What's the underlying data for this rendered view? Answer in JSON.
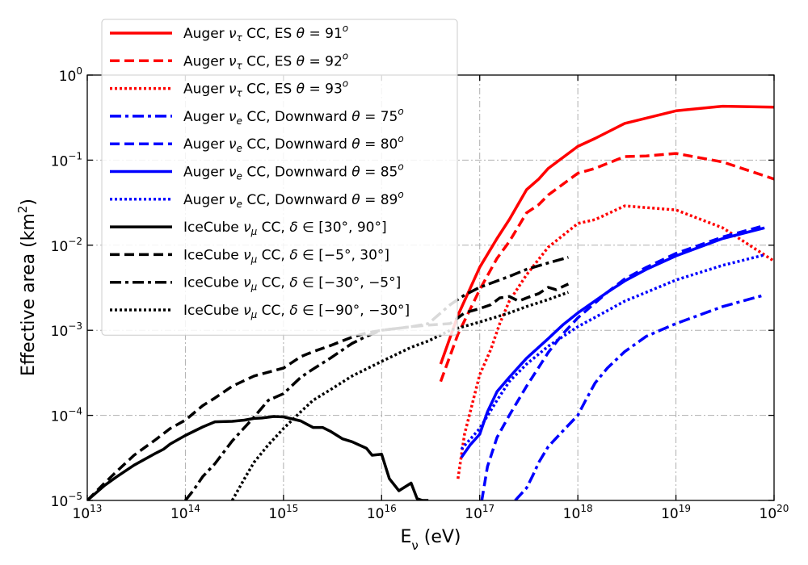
{
  "chart_data": {
    "type": "line",
    "xlabel": "E_ν (eV)",
    "ylabel": "Effective area (km²)",
    "xscale": "log",
    "yscale": "log",
    "xlim": [
      10000000000000.0,
      1e+20
    ],
    "ylim": [
      1e-05,
      1
    ],
    "grid": true,
    "legend_location": "upper-left",
    "x_ticks": [
      {
        "base": "10",
        "exp": "13",
        "value": 10000000000000.0
      },
      {
        "base": "10",
        "exp": "14",
        "value": 100000000000000.0
      },
      {
        "base": "10",
        "exp": "15",
        "value": 1000000000000000.0
      },
      {
        "base": "10",
        "exp": "16",
        "value": 1e+16
      },
      {
        "base": "10",
        "exp": "17",
        "value": 1e+17
      },
      {
        "base": "10",
        "exp": "18",
        "value": 1e+18
      },
      {
        "base": "10",
        "exp": "19",
        "value": 1e+19
      },
      {
        "base": "10",
        "exp": "20",
        "value": 1e+20
      }
    ],
    "y_ticks": [
      {
        "base": "10",
        "exp": "0",
        "value": 1
      },
      {
        "base": "10",
        "exp": "−1",
        "value": 0.1
      },
      {
        "base": "10",
        "exp": "−2",
        "value": 0.01
      },
      {
        "base": "10",
        "exp": "−3",
        "value": 0.001
      },
      {
        "base": "10",
        "exp": "−4",
        "value": 0.0001
      },
      {
        "base": "10",
        "exp": "−5",
        "value": 1e-05
      }
    ],
    "series": [
      {
        "name": "Auger ντ CC, ES θ = 91°",
        "color": "#ff0000",
        "style": "solid",
        "x": [
          4e+16,
          6e+16,
          1e+17,
          1.5e+17,
          2e+17,
          3e+17,
          4e+17,
          5e+17,
          1e+18,
          1.5e+18,
          3e+18,
          1e+19,
          3e+19,
          1e+20
        ],
        "y": [
          0.0004,
          0.0015,
          0.0055,
          0.012,
          0.02,
          0.045,
          0.06,
          0.08,
          0.145,
          0.18,
          0.27,
          0.38,
          0.43,
          0.42
        ]
      },
      {
        "name": "Auger ντ CC, ES θ = 92°",
        "color": "#ff0000",
        "style": "dashed",
        "x": [
          4e+16,
          6e+16,
          1e+17,
          1.5e+17,
          2e+17,
          3e+17,
          4e+17,
          5e+17,
          1e+18,
          1.5e+18,
          3e+18,
          5e+18,
          1e+19,
          3e+19,
          1e+20
        ],
        "y": [
          0.00025,
          0.0009,
          0.003,
          0.007,
          0.011,
          0.024,
          0.03,
          0.039,
          0.07,
          0.08,
          0.11,
          0.112,
          0.12,
          0.095,
          0.06
        ]
      },
      {
        "name": "Auger ντ CC, ES θ = 93°",
        "color": "#ff0000",
        "style": "dotted",
        "x": [
          6e+16,
          7e+16,
          1e+17,
          1.3e+17,
          1.6e+17,
          2e+17,
          3e+17,
          5e+17,
          1e+18,
          1.5e+18,
          3e+18,
          1e+19,
          3e+19,
          1e+20
        ],
        "y": [
          1.8e-05,
          6e-05,
          0.0003,
          0.0006,
          0.0012,
          0.0022,
          0.0045,
          0.0095,
          0.018,
          0.02,
          0.029,
          0.026,
          0.016,
          0.0065
        ]
      },
      {
        "name": "Auger νe CC, Downward θ = 75°",
        "color": "#0000ff",
        "style": "dashdot",
        "x": [
          2.3e+17,
          3e+17,
          3.5e+17,
          4e+17,
          5e+17,
          7e+17,
          1e+18,
          1.2e+18,
          1.5e+18,
          2e+18,
          3e+18,
          5e+18,
          1e+19,
          3e+19,
          8e+19
        ],
        "y": [
          1e-05,
          1.4e-05,
          2e-05,
          2.8e-05,
          4.3e-05,
          6.5e-05,
          0.0001,
          0.00015,
          0.00024,
          0.00036,
          0.00056,
          0.00085,
          0.0012,
          0.0019,
          0.0026
        ]
      },
      {
        "name": "Auger νe CC, Downward θ = 80°",
        "color": "#0000ff",
        "style": "dashed",
        "x": [
          1.05e+17,
          1.2e+17,
          1.5e+17,
          2e+17,
          3e+17,
          5e+17,
          7e+17,
          1e+18,
          2e+18,
          3e+18,
          5e+18,
          1e+19,
          3e+19,
          8e+19
        ],
        "y": [
          1e-05,
          2.5e-05,
          5.5e-05,
          0.0001,
          0.00022,
          0.00055,
          0.0009,
          0.0014,
          0.0028,
          0.004,
          0.0055,
          0.008,
          0.0125,
          0.017
        ]
      },
      {
        "name": "Auger νe CC, Downward θ = 85°",
        "color": "#0000ff",
        "style": "solid",
        "x": [
          6.5e+16,
          8e+16,
          1e+17,
          1.2e+17,
          1.5e+17,
          2e+17,
          3e+17,
          5e+17,
          7e+17,
          1e+18,
          2e+18,
          3e+18,
          5e+18,
          1e+19,
          3e+19,
          8e+19
        ],
        "y": [
          3.2e-05,
          4.5e-05,
          6e-05,
          0.00011,
          0.00019,
          0.00028,
          0.00047,
          0.0008,
          0.00115,
          0.0016,
          0.0028,
          0.0038,
          0.0052,
          0.0075,
          0.012,
          0.016
        ]
      },
      {
        "name": "Auger νe CC, Downward θ = 89°",
        "color": "#0000ff",
        "style": "dotted",
        "x": [
          6.5e+16,
          1e+17,
          1.5e+17,
          2e+17,
          3e+17,
          5e+17,
          1e+18,
          2e+18,
          3e+18,
          5e+18,
          1e+19,
          3e+19,
          8e+19
        ],
        "y": [
          4e-05,
          7e-05,
          0.00015,
          0.00025,
          0.0004,
          0.00065,
          0.0011,
          0.0017,
          0.0022,
          0.0028,
          0.0039,
          0.0058,
          0.0077
        ]
      },
      {
        "name": "IceCube νμ CC, δ ∈ [30°, 90°]",
        "color": "#000000",
        "style": "solid",
        "x": [
          10000000000000.0,
          12000000000000.0,
          15000000000000.0,
          20000000000000.0,
          30000000000000.0,
          50000000000000.0,
          60000000000000.0,
          70000000000000.0,
          100000000000000.0,
          150000000000000.0,
          200000000000000.0,
          300000000000000.0,
          400000000000000.0,
          500000000000000.0,
          600000000000000.0,
          800000000000000.0,
          1000000000000000.0,
          1500000000000000.0,
          2000000000000000.0,
          2500000000000000.0,
          3000000000000000.0,
          4000000000000000.0,
          5000000000000000.0,
          7000000000000000.0,
          8000000000000000.0,
          1e+16,
          1.2e+16,
          1.5e+16,
          2e+16,
          2.3e+16,
          2.6e+16,
          3e+16
        ],
        "y": [
          1e-05,
          1.2e-05,
          1.5e-05,
          1.9e-05,
          2.6e-05,
          3.6e-05,
          4e-05,
          4.6e-05,
          5.8e-05,
          7.3e-05,
          8.4e-05,
          8.5e-05,
          8.8e-05,
          9.2e-05,
          9.3e-05,
          9.7e-05,
          9.6e-05,
          8.6e-05,
          7.2e-05,
          7.2e-05,
          6.5e-05,
          5.3e-05,
          4.9e-05,
          4.1e-05,
          3.4e-05,
          3.5e-05,
          1.8e-05,
          1.3e-05,
          1.6e-05,
          1.05e-05,
          1e-05,
          1e-05
        ]
      },
      {
        "name": "IceCube νμ CC, δ ∈ [−5°, 30°]",
        "color": "#000000",
        "style": "dashed",
        "x": [
          10000000000000.0,
          15000000000000.0,
          20000000000000.0,
          30000000000000.0,
          50000000000000.0,
          70000000000000.0,
          100000000000000.0,
          150000000000000.0,
          200000000000000.0,
          300000000000000.0,
          500000000000000.0,
          1000000000000000.0,
          1500000000000000.0,
          2000000000000000.0,
          3000000000000000.0,
          5000000000000000.0,
          7000000000000000.0,
          1e+16,
          2e+16,
          3e+16,
          5e+16,
          7e+16,
          1e+17,
          1.3e+17,
          1.6e+17,
          2e+17,
          2.5e+17,
          3e+17,
          4e+17,
          5e+17,
          6e+17,
          8e+17
        ],
        "y": [
          1e-05,
          1.6e-05,
          2.2e-05,
          3.4e-05,
          5.2e-05,
          7e-05,
          8.8e-05,
          0.00013,
          0.00016,
          0.00022,
          0.00029,
          0.00036,
          0.00049,
          0.00056,
          0.00066,
          0.00083,
          0.00093,
          0.001,
          0.0011,
          0.00115,
          0.0012,
          0.0016,
          0.0018,
          0.002,
          0.0024,
          0.0025,
          0.0022,
          0.0024,
          0.0027,
          0.0032,
          0.003,
          0.0035
        ]
      },
      {
        "name": "IceCube νμ CC, δ ∈ [−30°, −5°]",
        "color": "#000000",
        "style": "dashdot",
        "x": [
          100000000000000.0,
          120000000000000.0,
          150000000000000.0,
          200000000000000.0,
          300000000000000.0,
          500000000000000.0,
          700000000000000.0,
          1000000000000000.0,
          1500000000000000.0,
          2000000000000000.0,
          3000000000000000.0,
          5000000000000000.0,
          7000000000000000.0,
          1e+16,
          2e+16,
          3e+16,
          5e+16,
          7e+16,
          1e+17,
          2e+17,
          3e+17,
          5e+17,
          8e+17
        ],
        "y": [
          1e-05,
          1.3e-05,
          1.9e-05,
          2.7e-05,
          5e-05,
          9.5e-05,
          0.00015,
          0.00018,
          0.00028,
          0.00035,
          0.00047,
          0.0007,
          0.00085,
          0.001,
          0.0011,
          0.0012,
          0.002,
          0.0026,
          0.0032,
          0.0043,
          0.0052,
          0.0062,
          0.0072
        ]
      },
      {
        "name": "IceCube νμ CC, δ ∈ [−90°, −30°]",
        "color": "#000000",
        "style": "dotted",
        "x": [
          300000000000000.0,
          400000000000000.0,
          500000000000000.0,
          700000000000000.0,
          1000000000000000.0,
          1500000000000000.0,
          2000000000000000.0,
          3000000000000000.0,
          5000000000000000.0,
          1e+16,
          2e+16,
          3e+16,
          5e+16,
          1e+17,
          2e+17,
          3e+17,
          5e+17,
          8e+17
        ],
        "y": [
          1e-05,
          1.8e-05,
          2.8e-05,
          4.5e-05,
          7e-05,
          0.00011,
          0.00015,
          0.0002,
          0.00029,
          0.00043,
          0.00063,
          0.00075,
          0.001,
          0.00125,
          0.0016,
          0.0019,
          0.0023,
          0.0028
        ]
      }
    ],
    "legend": [
      {
        "prefix": "Auger ",
        "nu": "ν",
        "sub": "τ",
        "mid": " CC, ES ",
        "theta": "θ",
        "eq": " = ",
        "val": "91",
        "sup": "o",
        "tail": "",
        "color": "#ff0000",
        "style": "solid"
      },
      {
        "prefix": "Auger ",
        "nu": "ν",
        "sub": "τ",
        "mid": " CC, ES ",
        "theta": "θ",
        "eq": " = ",
        "val": "92",
        "sup": "o",
        "tail": "",
        "color": "#ff0000",
        "style": "dashed"
      },
      {
        "prefix": "Auger ",
        "nu": "ν",
        "sub": "τ",
        "mid": " CC, ES ",
        "theta": "θ",
        "eq": " = ",
        "val": "93",
        "sup": "o",
        "tail": "",
        "color": "#ff0000",
        "style": "dotted"
      },
      {
        "prefix": "Auger ",
        "nu": "ν",
        "sub": "e",
        "mid": " CC, Downward ",
        "theta": "θ",
        "eq": " = ",
        "val": "75",
        "sup": "o",
        "tail": "",
        "color": "#0000ff",
        "style": "dashdot"
      },
      {
        "prefix": "Auger ",
        "nu": "ν",
        "sub": "e",
        "mid": " CC, Downward ",
        "theta": "θ",
        "eq": " = ",
        "val": "80",
        "sup": "o",
        "tail": "",
        "color": "#0000ff",
        "style": "dashed"
      },
      {
        "prefix": "Auger ",
        "nu": "ν",
        "sub": "e",
        "mid": " CC, Downward ",
        "theta": "θ",
        "eq": " = ",
        "val": "85",
        "sup": "o",
        "tail": "",
        "color": "#0000ff",
        "style": "solid"
      },
      {
        "prefix": "Auger ",
        "nu": "ν",
        "sub": "e",
        "mid": " CC, Downward ",
        "theta": "θ",
        "eq": " = ",
        "val": "89",
        "sup": "o",
        "tail": "",
        "color": "#0000ff",
        "style": "dotted"
      },
      {
        "prefix": "IceCube ",
        "nu": "ν",
        "sub": "μ",
        "mid": " CC, ",
        "theta": "δ",
        "eq": " ∈ ",
        "val": "",
        "sup": "",
        "tail": "[30°, 90°]",
        "color": "#000000",
        "style": "solid"
      },
      {
        "prefix": "IceCube ",
        "nu": "ν",
        "sub": "μ",
        "mid": " CC, ",
        "theta": "δ",
        "eq": " ∈ ",
        "val": "",
        "sup": "",
        "tail": "[−5°, 30°]",
        "color": "#000000",
        "style": "dashed"
      },
      {
        "prefix": "IceCube ",
        "nu": "ν",
        "sub": "μ",
        "mid": " CC, ",
        "theta": "δ",
        "eq": " ∈ ",
        "val": "",
        "sup": "",
        "tail": "[−30°, −5°]",
        "color": "#000000",
        "style": "dashdot"
      },
      {
        "prefix": "IceCube ",
        "nu": "ν",
        "sub": "μ",
        "mid": " CC, ",
        "theta": "δ",
        "eq": " ∈ ",
        "val": "",
        "sup": "",
        "tail": "[−90°, −30°]",
        "color": "#000000",
        "style": "dotted"
      }
    ]
  }
}
